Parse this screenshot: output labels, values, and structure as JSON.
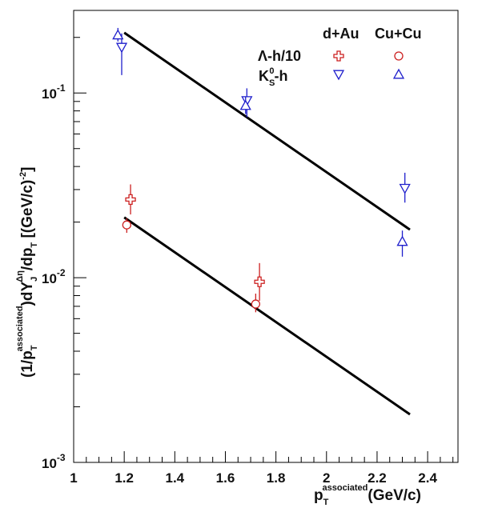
{
  "chart_data": {
    "type": "scatter",
    "x_axis": {
      "label_main": "p",
      "label_sub": "T",
      "label_sup": "associated",
      "label_rest": "(GeV/c)",
      "range": [
        1.0,
        2.52
      ],
      "tick_labels": [
        "1",
        "1.2",
        "1.4",
        "1.6",
        "1.8",
        "2",
        "2.2",
        "2.4"
      ],
      "tick_values": [
        1.0,
        1.2,
        1.4,
        1.6,
        1.8,
        2.0,
        2.2,
        2.4
      ]
    },
    "y_axis": {
      "scale": "log",
      "range": [
        0.001,
        0.28
      ],
      "label_parts": {
        "a": "(1/p",
        "a_sub": "T",
        "a_sup": "associated",
        "b": ")dY",
        "b_sub": "J",
        "b_sup": "Δη",
        "c": "/dp",
        "c_sub": "T",
        "d": " [(GeV/c)",
        "d_sup": "-2",
        "e": "]"
      },
      "tick_labels": [
        {
          "base": "10",
          "exp": "-1",
          "value": 0.1
        },
        {
          "base": "10",
          "exp": "-2",
          "value": 0.01
        },
        {
          "base": "10",
          "exp": "-3",
          "value": 0.001
        }
      ]
    },
    "legend": {
      "placement": "top-right",
      "header_dau": "d+Au",
      "header_cucu": "Cu+Cu",
      "row1_label": "Λ-h/10",
      "row2_main": "K",
      "row2_sub": "S",
      "row2_sup": "0",
      "row2_rest": "-h"
    },
    "series": [
      {
        "name": "Λ-h/10 d+Au",
        "marker": "cross",
        "color": "#cc1f1f",
        "points": [
          {
            "x": 1.225,
            "y": 0.0265,
            "err_lo": 0.022,
            "err_hi": 0.032
          },
          {
            "x": 1.735,
            "y": 0.0095,
            "err_lo": 0.0075,
            "err_hi": 0.012
          }
        ]
      },
      {
        "name": "Λ-h/10 Cu+Cu",
        "marker": "circle",
        "color": "#cc1f1f",
        "points": [
          {
            "x": 1.21,
            "y": 0.0193,
            "err_lo": 0.0175,
            "err_hi": 0.021
          },
          {
            "x": 1.72,
            "y": 0.0072,
            "err_lo": 0.0065,
            "err_hi": 0.0082
          }
        ]
      },
      {
        "name": "K_S^0-h d+Au",
        "marker": "triangle-down",
        "color": "#1f1fcc",
        "points": [
          {
            "x": 1.19,
            "y": 0.177,
            "err_lo": 0.125,
            "err_hi": 0.21
          },
          {
            "x": 1.685,
            "y": 0.091,
            "err_lo": 0.074,
            "err_hi": 0.106
          },
          {
            "x": 2.31,
            "y": 0.0305,
            "err_lo": 0.0255,
            "err_hi": 0.037
          }
        ]
      },
      {
        "name": "K_S^0-h Cu+Cu",
        "marker": "triangle-up",
        "color": "#1f1fcc",
        "points": [
          {
            "x": 1.175,
            "y": 0.206,
            "err_lo": 0.19,
            "err_hi": 0.225
          },
          {
            "x": 1.68,
            "y": 0.0855,
            "err_lo": 0.077,
            "err_hi": 0.095
          },
          {
            "x": 2.3,
            "y": 0.0157,
            "err_lo": 0.013,
            "err_hi": 0.018
          }
        ]
      }
    ],
    "fit_lines": [
      {
        "x": [
          1.2,
          2.33
        ],
        "y": [
          0.212,
          0.0182
        ],
        "color": "#000000"
      },
      {
        "x": [
          1.2,
          2.33
        ],
        "y": [
          0.0212,
          0.00182
        ],
        "color": "#000000"
      }
    ],
    "colors": {
      "lambda": "#cc1f1f",
      "kshort": "#1f1fcc",
      "fit": "#000000",
      "axis": "#000000"
    }
  }
}
